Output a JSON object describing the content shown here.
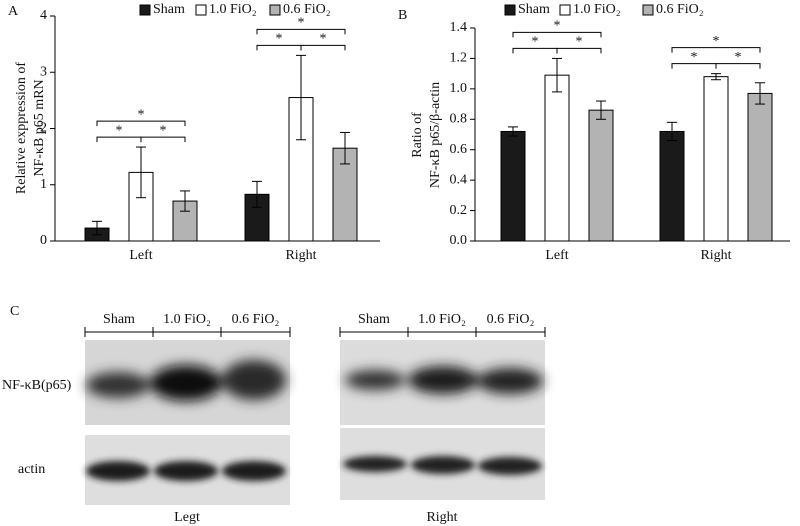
{
  "chart_data": [
    {
      "type": "bar",
      "panel": "A",
      "ylabel": [
        "Relative exppression of",
        "NF-κB p65 mRN"
      ],
      "categories": [
        "Left",
        "Right"
      ],
      "series": [
        {
          "name": "Sham",
          "color": "#1a1a1a",
          "values": [
            0.23,
            0.83
          ],
          "errors": [
            0.12,
            0.23
          ]
        },
        {
          "name": "1.0 FiO₂",
          "color": "#ffffff",
          "values": [
            1.22,
            2.55
          ],
          "errors": [
            0.45,
            0.75
          ]
        },
        {
          "name": "0.6 FiO₂",
          "color": "#b3b3b3",
          "values": [
            0.71,
            1.65
          ],
          "errors": [
            0.18,
            0.28
          ]
        }
      ],
      "ylim": [
        0,
        4
      ],
      "yticks": [
        0,
        1,
        2,
        3,
        4
      ],
      "significance": [
        {
          "category": 0,
          "pair": [
            0,
            1
          ],
          "label": "*"
        },
        {
          "category": 0,
          "pair": [
            1,
            2
          ],
          "label": "*"
        },
        {
          "category": 0,
          "pair": [
            0,
            2
          ],
          "label": "*"
        },
        {
          "category": 1,
          "pair": [
            0,
            1
          ],
          "label": "*"
        },
        {
          "category": 1,
          "pair": [
            1,
            2
          ],
          "label": "*"
        },
        {
          "category": 1,
          "pair": [
            0,
            2
          ],
          "label": "*"
        }
      ]
    },
    {
      "type": "bar",
      "panel": "B",
      "ylabel": [
        "Ratio of",
        "NF-κB p65/β-actin"
      ],
      "categories": [
        "Left",
        "Right"
      ],
      "series": [
        {
          "name": "Sham",
          "color": "#1a1a1a",
          "values": [
            0.72,
            0.72
          ],
          "errors": [
            0.03,
            0.06
          ]
        },
        {
          "name": "1.0 FiO₂",
          "color": "#ffffff",
          "values": [
            1.09,
            1.08
          ],
          "errors": [
            0.11,
            0.02
          ]
        },
        {
          "name": "0.6 FiO₂",
          "color": "#b3b3b3",
          "values": [
            0.86,
            0.97
          ],
          "errors": [
            0.06,
            0.07
          ]
        }
      ],
      "ylim": [
        0,
        1.4
      ],
      "yticks": [
        {
          "value": 0,
          "label": "0.0"
        },
        0.2,
        0.4,
        0.6,
        0.8,
        {
          "value": 1,
          "label": "1.0"
        },
        1.2,
        1.4
      ],
      "significance": [
        {
          "category": 0,
          "pair": [
            0,
            1
          ],
          "label": "*"
        },
        {
          "category": 0,
          "pair": [
            1,
            2
          ],
          "label": "*"
        },
        {
          "category": 0,
          "pair": [
            0,
            2
          ],
          "label": "*"
        },
        {
          "category": 1,
          "pair": [
            0,
            1
          ],
          "label": "*"
        },
        {
          "category": 1,
          "pair": [
            1,
            2
          ],
          "label": "*"
        },
        {
          "category": 1,
          "pair": [
            0,
            2
          ],
          "label": "*"
        }
      ]
    }
  ],
  "blot": {
    "panel": "C",
    "lanes": [
      "Sham",
      "1.0 FiO₂",
      "0.6 FiO₂"
    ],
    "rows": [
      "NF-κB(p65)",
      "actin"
    ],
    "sides": [
      "Legt",
      "Right"
    ]
  }
}
